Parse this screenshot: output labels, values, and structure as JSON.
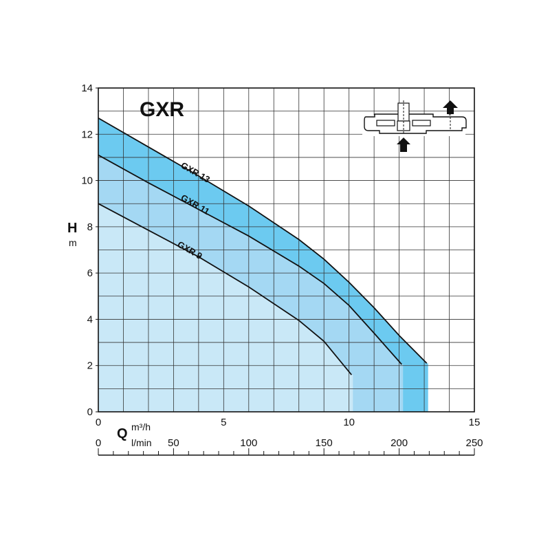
{
  "chart_data": {
    "type": "area",
    "title": "GXR",
    "ylabel": "H",
    "yunit": "m",
    "xlabel": "Q",
    "x_unit_primary": "m³/h",
    "x_unit_secondary": "l/min",
    "xlim": [
      0,
      15
    ],
    "ylim": [
      0,
      14
    ],
    "x_secondary_lim": [
      0,
      250
    ],
    "x_ticks": [
      "0",
      "5",
      "10",
      "15"
    ],
    "x_tick_values": [
      0,
      5,
      10,
      15
    ],
    "x_secondary_ticks": [
      "0",
      "50",
      "100",
      "150",
      "200",
      "250"
    ],
    "x_secondary_tick_values": [
      0,
      50,
      100,
      150,
      200,
      250
    ],
    "y_ticks": [
      "0",
      "2",
      "4",
      "6",
      "8",
      "10",
      "12",
      "14"
    ],
    "y_tick_values": [
      0,
      2,
      4,
      6,
      8,
      10,
      12,
      14
    ],
    "grid": true,
    "series": [
      {
        "name": "GXR 13",
        "color": "#6ccaf0",
        "x": [
          0,
          2,
          4,
          6,
          8,
          9,
          10,
          11,
          12,
          13.1
        ],
        "y": [
          12.7,
          11.45,
          10.2,
          8.9,
          7.45,
          6.6,
          5.6,
          4.5,
          3.3,
          2.1
        ]
      },
      {
        "name": "GXR 11",
        "color": "#a4d8f3",
        "x": [
          0,
          2,
          4,
          6,
          8,
          9,
          10,
          11,
          12.1
        ],
        "y": [
          11.1,
          9.9,
          8.75,
          7.6,
          6.3,
          5.55,
          4.6,
          3.4,
          2.05
        ]
      },
      {
        "name": "GXR 9",
        "color": "#c9e8f7",
        "x": [
          0,
          2,
          4,
          6,
          8,
          9,
          10.1
        ],
        "y": [
          9.0,
          7.85,
          6.7,
          5.4,
          3.95,
          3.05,
          1.6
        ]
      }
    ],
    "inset_icon": "pump-installation-diagram-icon"
  }
}
